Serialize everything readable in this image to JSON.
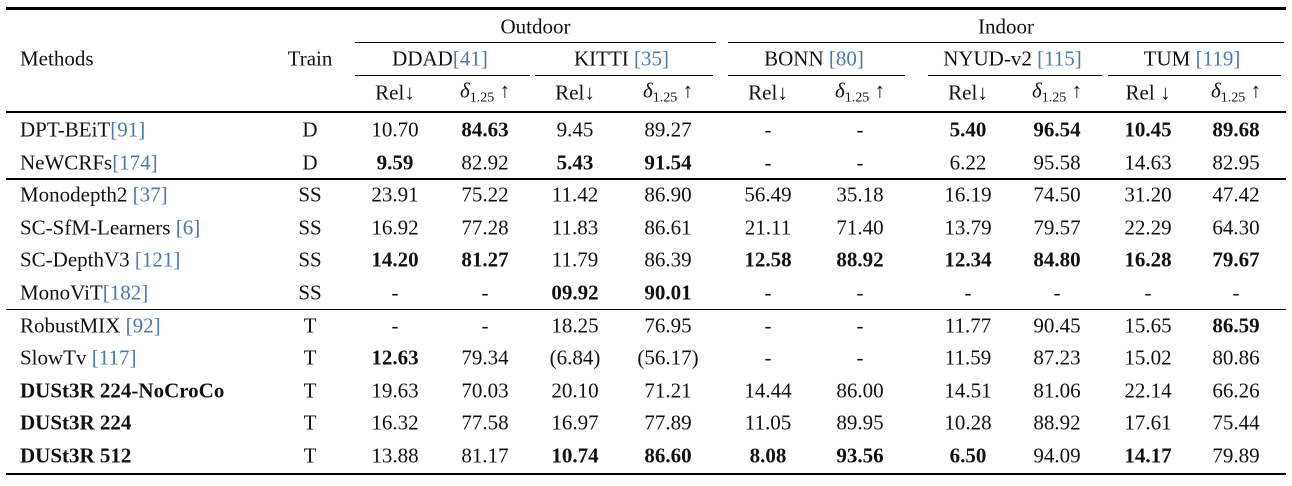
{
  "table": {
    "header": {
      "methods": "Methods",
      "train": "Train",
      "super_headers": [
        {
          "text": "Outdoor",
          "datasets": [
            {
              "name": "DDAD",
              "cite": "[41]",
              "metrics": [
                "Rel↓",
                {
                  "text": "δ",
                  "sub": "1.25",
                  "suffix": " ↑"
                }
              ]
            },
            {
              "name": "KITTI ",
              "cite": "[35]",
              "metrics": [
                "Rel↓",
                {
                  "text": "δ",
                  "sub": "1.25",
                  "suffix": " ↑"
                }
              ]
            }
          ]
        },
        {
          "text": "Indoor",
          "datasets": [
            {
              "name": "BONN ",
              "cite": "[80]",
              "metrics": [
                "Rel↓",
                {
                  "text": "δ",
                  "sub": "1.25",
                  "suffix": " ↑"
                }
              ]
            },
            {
              "name": "NYUD-v2 ",
              "cite": "[115]",
              "metrics": [
                "Rel↓",
                {
                  "text": "δ",
                  "sub": "1.25",
                  "suffix": " ↑"
                }
              ]
            },
            {
              "name": "TUM ",
              "cite": "[119]",
              "metrics": [
                "Rel ↓",
                {
                  "text": "δ",
                  "sub": "1.25",
                  "suffix": " ↑"
                }
              ]
            }
          ]
        }
      ]
    },
    "groups": [
      {
        "rows": [
          {
            "method": {
              "name": "DPT-BEiT",
              "cite": "[91]"
            },
            "train": "D",
            "values": [
              "10.70",
              {
                "text": "84.63",
                "bold": true
              },
              "9.45",
              "89.27",
              "-",
              "-",
              {
                "text": "5.40",
                "bold": true
              },
              {
                "text": "96.54",
                "bold": true
              },
              {
                "text": "10.45",
                "bold": true
              },
              {
                "text": "89.68",
                "bold": true
              }
            ]
          },
          {
            "method": {
              "name": "NeWCRFs",
              "cite": "[174]"
            },
            "train": "D",
            "values": [
              {
                "text": "9.59",
                "bold": true
              },
              "82.92",
              {
                "text": "5.43",
                "bold": true
              },
              {
                "text": "91.54",
                "bold": true
              },
              "-",
              "-",
              "6.22",
              "95.58",
              "14.63",
              "82.95"
            ]
          }
        ]
      },
      {
        "rows": [
          {
            "method": {
              "name": "Monodepth2 ",
              "cite": "[37]"
            },
            "train": "SS",
            "values": [
              "23.91",
              "75.22",
              "11.42",
              "86.90",
              "56.49",
              "35.18",
              "16.19",
              "74.50",
              "31.20",
              "47.42"
            ]
          },
          {
            "method": {
              "name": "SC-SfM-Learners ",
              "cite": "[6]"
            },
            "train": "SS",
            "values": [
              "16.92",
              "77.28",
              "11.83",
              "86.61",
              "21.11",
              "71.40",
              "13.79",
              "79.57",
              "22.29",
              "64.30"
            ]
          },
          {
            "method": {
              "name": "SC-DepthV3 ",
              "cite": "[121]"
            },
            "train": "SS",
            "values": [
              {
                "text": "14.20",
                "bold": true
              },
              {
                "text": "81.27",
                "bold": true
              },
              "11.79",
              "86.39",
              {
                "text": "12.58",
                "bold": true
              },
              {
                "text": "88.92",
                "bold": true
              },
              {
                "text": "12.34",
                "bold": true
              },
              {
                "text": "84.80",
                "bold": true
              },
              {
                "text": "16.28",
                "bold": true
              },
              {
                "text": "79.67",
                "bold": true
              }
            ]
          },
          {
            "method": {
              "name": "MonoViT",
              "cite": "[182]"
            },
            "train": "SS",
            "values": [
              "-",
              "-",
              {
                "text": "09.92",
                "bold": true
              },
              {
                "text": "90.01",
                "bold": true
              },
              "-",
              "-",
              "-",
              "-",
              "-",
              "-"
            ]
          }
        ]
      },
      {
        "rows": [
          {
            "method": {
              "name": "RobustMIX ",
              "cite": "[92]"
            },
            "train": "T",
            "values": [
              "-",
              "-",
              "18.25",
              "76.95",
              "-",
              "-",
              "11.77",
              "90.45",
              "15.65",
              {
                "text": "86.59",
                "bold": true
              }
            ]
          },
          {
            "method": {
              "name": "SlowTv ",
              "cite": "[117]"
            },
            "train": "T",
            "values": [
              {
                "text": "12.63",
                "bold": true
              },
              "79.34",
              "(6.84)",
              "(56.17)",
              "-",
              "-",
              "11.59",
              "87.23",
              "15.02",
              "80.86"
            ]
          },
          {
            "method": {
              "name": "DUSt3R 224-NoCroCo",
              "bold": true
            },
            "train": "T",
            "values": [
              "19.63",
              "70.03",
              "20.10",
              "71.21",
              "14.44",
              "86.00",
              "14.51",
              "81.06",
              "22.14",
              "66.26"
            ]
          },
          {
            "method": {
              "name": "DUSt3R 224",
              "bold": true
            },
            "train": "T",
            "values": [
              "16.32",
              "77.58",
              "16.97",
              "77.89",
              "11.05",
              "89.95",
              "10.28",
              "88.92",
              "17.61",
              "75.44"
            ]
          },
          {
            "method": {
              "name": "DUSt3R 512",
              "bold": true
            },
            "train": "T",
            "values": [
              "13.88",
              "81.17",
              {
                "text": "10.74",
                "bold": true
              },
              {
                "text": "86.60",
                "bold": true
              },
              {
                "text": "8.08",
                "bold": true
              },
              {
                "text": "93.56",
                "bold": true
              },
              {
                "text": "6.50",
                "bold": true
              },
              "94.09",
              {
                "text": "14.17",
                "bold": true
              },
              "79.89"
            ]
          }
        ]
      }
    ]
  }
}
